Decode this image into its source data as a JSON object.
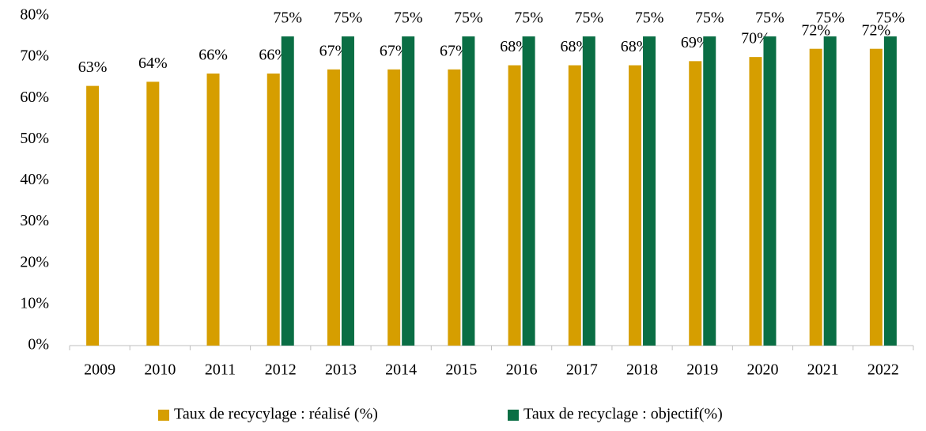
{
  "chart_data": {
    "type": "bar",
    "categories": [
      "2009",
      "2010",
      "2011",
      "2012",
      "2013",
      "2014",
      "2015",
      "2016",
      "2017",
      "2018",
      "2019",
      "2020",
      "2021",
      "2022"
    ],
    "series": [
      {
        "name": "Taux de recycylage : réalisé (%)",
        "color": "#d69e00",
        "values": [
          63,
          64,
          66,
          66,
          67,
          67,
          67,
          68,
          68,
          68,
          69,
          70,
          72,
          72
        ],
        "value_labels": [
          "63%",
          "64%",
          "66%",
          "66%",
          "67%",
          "67%",
          "67%",
          "68%",
          "68%",
          "68%",
          "69%",
          "70%",
          "72%",
          "72%"
        ]
      },
      {
        "name": "Taux de recyclage : objectif(%)",
        "color": "#0a6e44",
        "values": [
          null,
          null,
          null,
          75,
          75,
          75,
          75,
          75,
          75,
          75,
          75,
          75,
          75,
          75
        ],
        "value_labels": [
          null,
          null,
          null,
          "75%",
          "75%",
          "75%",
          "75%",
          "75%",
          "75%",
          "75%",
          "75%",
          "75%",
          "75%",
          "75%"
        ]
      }
    ],
    "ylim": [
      0,
      80
    ],
    "yticks": [
      {
        "value": 0,
        "label": "0%"
      },
      {
        "value": 10,
        "label": "10%"
      },
      {
        "value": 20,
        "label": "20%"
      },
      {
        "value": 30,
        "label": "30%"
      },
      {
        "value": 40,
        "label": "40%"
      },
      {
        "value": 50,
        "label": "50%"
      },
      {
        "value": 60,
        "label": "60%"
      },
      {
        "value": 70,
        "label": "70%"
      },
      {
        "value": 80,
        "label": "80%"
      }
    ],
    "legend": "bottom"
  }
}
